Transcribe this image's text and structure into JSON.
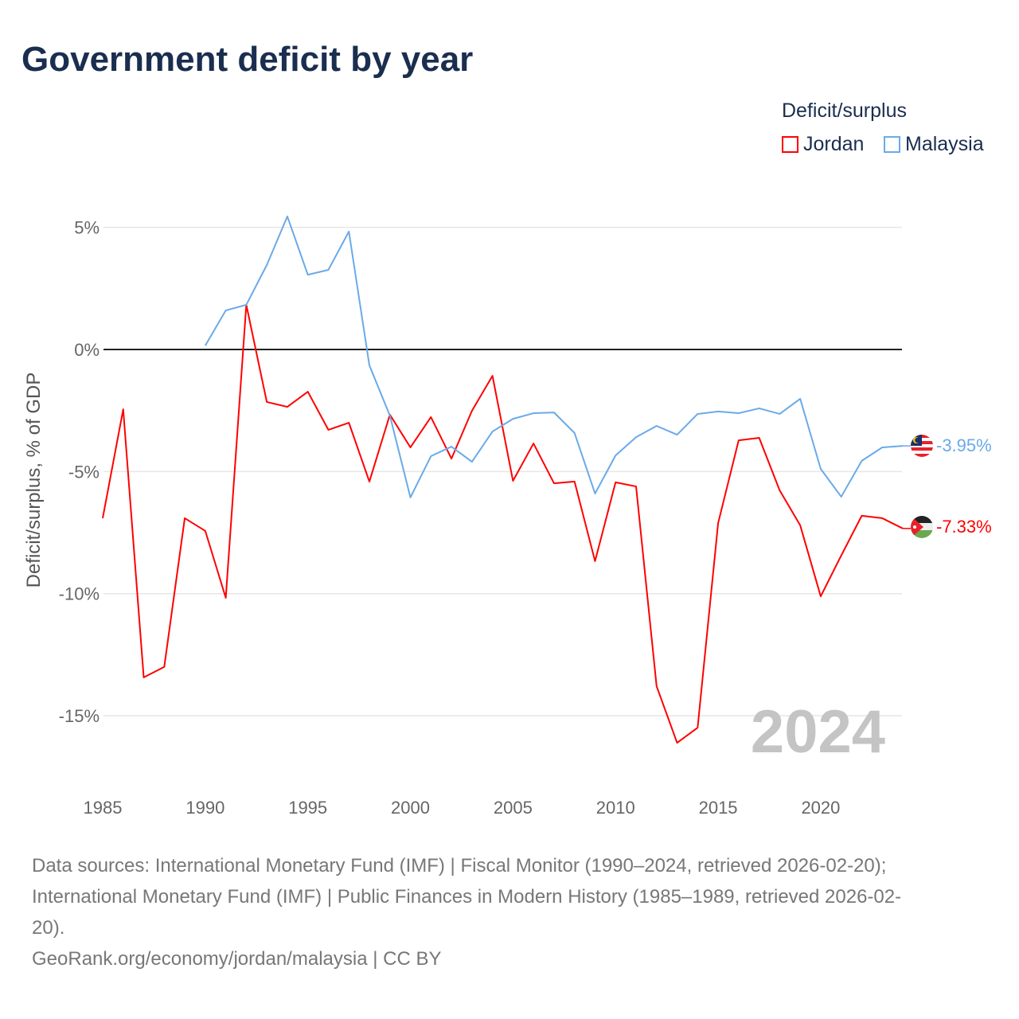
{
  "chart_data": {
    "type": "line",
    "title": "Government deficit by year",
    "ylabel": "Deficit/surplus, % of GDP",
    "xlabel": "",
    "ylim": [
      -17.5,
      6.5
    ],
    "xlim": [
      1985,
      2024
    ],
    "y_ticks": [
      5,
      0,
      -5,
      -10,
      -15
    ],
    "y_tick_labels": [
      "5%",
      "0%",
      "-5%",
      "-10%",
      "-15%"
    ],
    "x_ticks": [
      1985,
      1990,
      1995,
      2000,
      2005,
      2010,
      2015,
      2020
    ],
    "x_tick_labels": [
      "1985",
      "1990",
      "1995",
      "2000",
      "2005",
      "2010",
      "2015",
      "2020"
    ],
    "legend_title": "Deficit/surplus",
    "legend_position": "top-right",
    "year_watermark": "2024",
    "series": [
      {
        "name": "Jordan",
        "color": "#ff0000",
        "end_label": "-7.33%",
        "start_year": 1985,
        "values": [
          -6.91,
          -2.45,
          -13.43,
          -13.0,
          -6.91,
          -7.43,
          -10.17,
          1.83,
          -2.15,
          -2.35,
          -1.73,
          -3.29,
          -3.0,
          -5.41,
          -2.67,
          -4.01,
          -2.77,
          -4.47,
          -2.51,
          -1.08,
          -5.38,
          -3.85,
          -5.48,
          -5.41,
          -8.67,
          -5.44,
          -5.61,
          -13.79,
          -16.11,
          -15.49,
          -7.11,
          -3.72,
          -3.62,
          -5.77,
          -7.2,
          -10.11,
          -8.44,
          -6.81,
          -6.91,
          -7.33
        ]
      },
      {
        "name": "Malaysia",
        "color": "#6aaae8",
        "end_label": "-3.95%",
        "start_year": 1990,
        "values": [
          0.16,
          1.6,
          1.83,
          3.46,
          5.45,
          3.06,
          3.26,
          4.83,
          -0.65,
          -2.71,
          -6.06,
          -4.37,
          -3.98,
          -4.6,
          -3.36,
          -2.84,
          -2.61,
          -2.58,
          -3.42,
          -5.9,
          -4.34,
          -3.59,
          -3.13,
          -3.49,
          -2.64,
          -2.54,
          -2.61,
          -2.41,
          -2.64,
          -2.02,
          -4.89,
          -6.03,
          -4.56,
          -4.01,
          -3.95
        ]
      }
    ]
  },
  "footer": {
    "line1": "Data sources: International Monetary Fund (IMF) | Fiscal Monitor (1990–2024, retrieved 2026-02-20);",
    "line2": "International Monetary Fund (IMF) | Public Finances in Modern History (1985–1989, retrieved 2026-02-",
    "line3": "20).",
    "line4": "GeoRank.org/economy/jordan/malaysia | CC BY"
  }
}
